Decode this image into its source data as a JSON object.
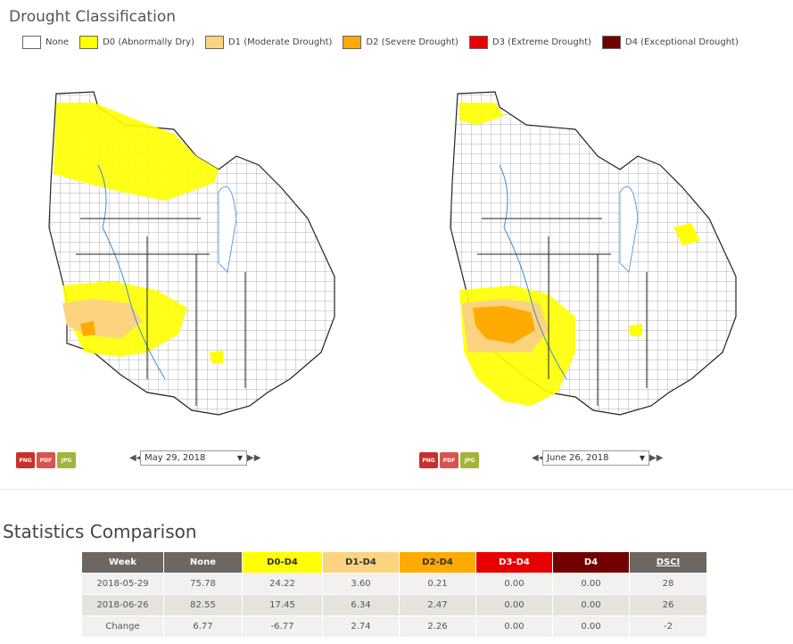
{
  "title": "Drought Classification",
  "legend": [
    {
      "label": "None",
      "color": "#ffffff"
    },
    {
      "label": "D0 (Abnormally Dry)",
      "color": "#ffff00"
    },
    {
      "label": "D1 (Moderate Drought)",
      "color": "#fcd37f"
    },
    {
      "label": "D2 (Severe Drought)",
      "color": "#ffaa00"
    },
    {
      "label": "D3 (Extreme Drought)",
      "color": "#e60000"
    },
    {
      "label": "D4 (Exceptional Drought)",
      "color": "#730000"
    }
  ],
  "maps": [
    {
      "date": "May 29, 2018",
      "export": [
        "PNG",
        "PDF",
        "JPG"
      ]
    },
    {
      "date": "June 26, 2018",
      "export": [
        "PNG",
        "PDF",
        "JPG"
      ]
    }
  ],
  "nav": {
    "prev": "◀◀",
    "next": "▶▶",
    "caret": "▼"
  },
  "stats": {
    "title": "Statistics Comparison",
    "headers": [
      "Week",
      "None",
      "D0-D4",
      "D1-D4",
      "D2-D4",
      "D3-D4",
      "D4",
      "DSCI"
    ],
    "rows": [
      [
        "2018-05-29",
        "75.78",
        "24.22",
        "3.60",
        "0.21",
        "0.00",
        "0.00",
        "28"
      ],
      [
        "2018-06-26",
        "82.55",
        "17.45",
        "6.34",
        "2.47",
        "0.00",
        "0.00",
        "26"
      ],
      [
        "Change",
        "6.77",
        "-6.77",
        "2.74",
        "2.26",
        "0.00",
        "0.00",
        "-2"
      ]
    ]
  }
}
